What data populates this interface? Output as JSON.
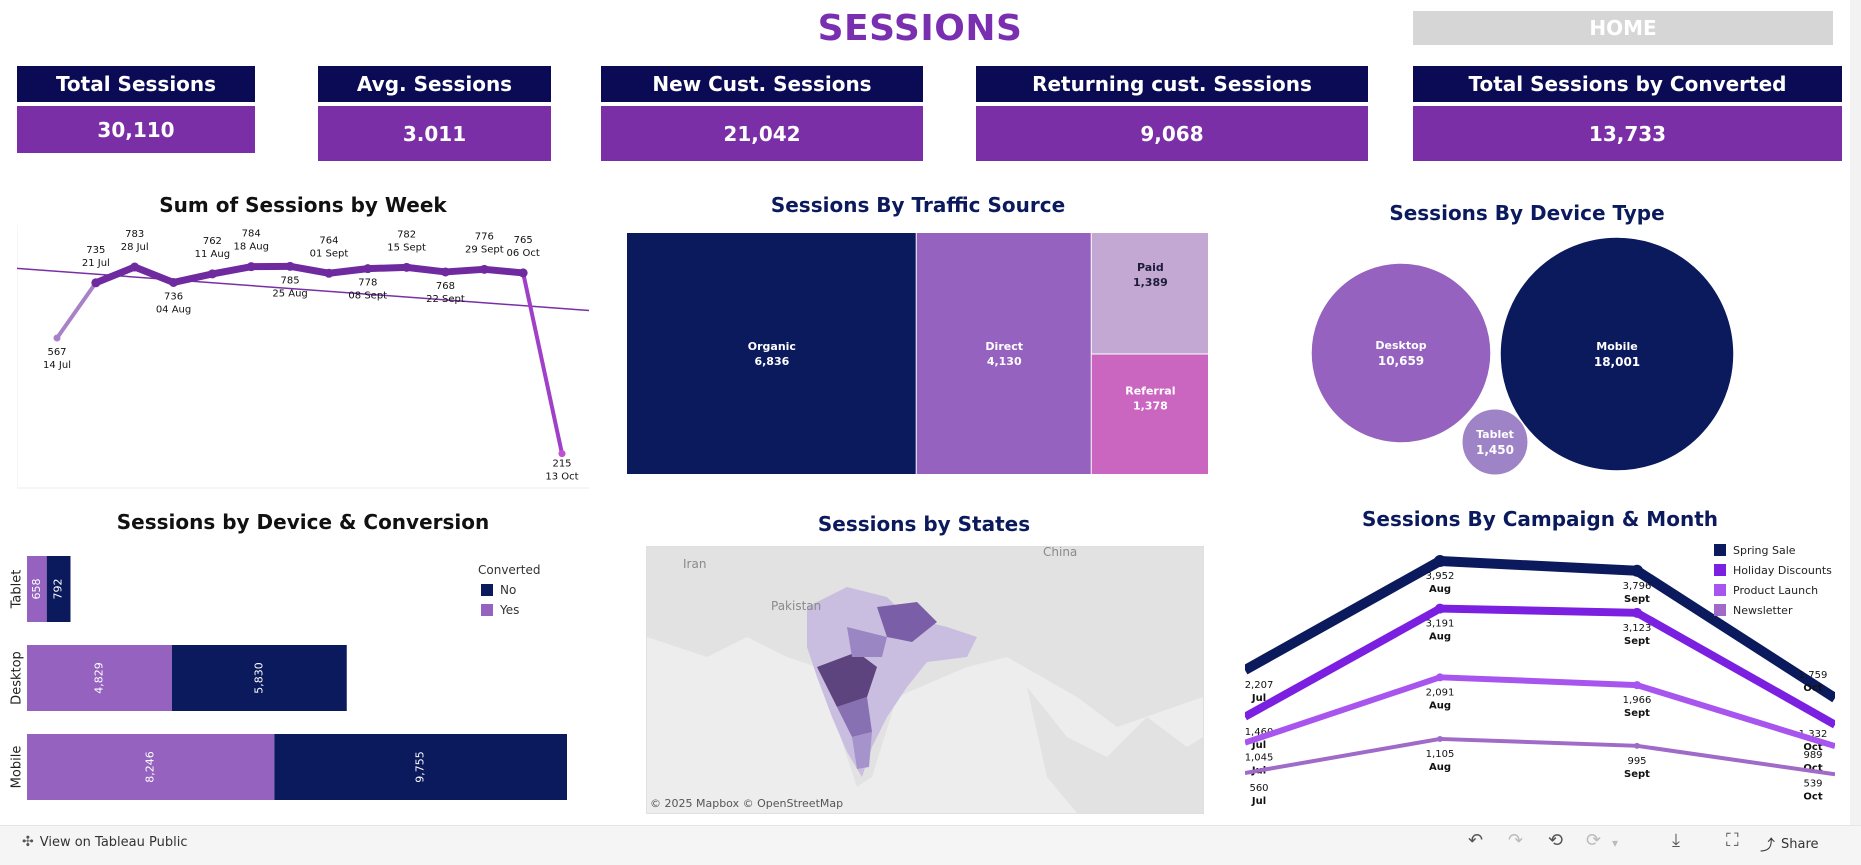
{
  "header": {
    "title": "SESSIONS",
    "home_label": "HOME"
  },
  "kpis": [
    {
      "label": "Total Sessions",
      "value": "30,110"
    },
    {
      "label": "Avg. Sessions",
      "value": "3.011"
    },
    {
      "label": "New Cust. Sessions",
      "value": "21,042"
    },
    {
      "label": "Returning cust. Sessions",
      "value": "9,068"
    },
    {
      "label": "Total Sessions by Converted",
      "value": "13,733"
    }
  ],
  "titles": {
    "week": "Sum of Sessions by Week",
    "traffic": "Sessions By Traffic Source",
    "device": "Sessions By Device Type",
    "devconv": "Sessions by Device & Conversion",
    "states": "Sessions by States",
    "campaign": "Sessions By Campaign & Month"
  },
  "colors": {
    "navy": "#0b1a5c",
    "purple": "#7a2fa6",
    "line": "#6e2a9e",
    "orchid": "#cb66c0",
    "lavender": "#c3a8d4",
    "mid_purple": "#9563bf"
  },
  "chart_data": [
    {
      "type": "line",
      "title": "Sum of Sessions by Week",
      "x": [
        "14 Jul",
        "21 Jul",
        "28 Jul",
        "04 Aug",
        "11 Aug",
        "18 Aug",
        "25 Aug",
        "01 Sept",
        "08 Sept",
        "15 Sept",
        "22 Sept",
        "29 Sept",
        "06 Oct",
        "13 Oct"
      ],
      "values": [
        567,
        735,
        783,
        736,
        762,
        784,
        785,
        764,
        778,
        782,
        768,
        776,
        765,
        215
      ],
      "labels": [
        "567",
        "735",
        "783",
        "736",
        "762",
        "784",
        "785",
        "764",
        "778",
        "782",
        "768",
        "776",
        "765",
        "215"
      ],
      "trend_line": true
    },
    {
      "type": "treemap",
      "title": "Sessions By Traffic Source",
      "items": [
        {
          "name": "Organic",
          "value": 6836,
          "label": "6,836",
          "color": "#0b1a5c"
        },
        {
          "name": "Direct",
          "value": 4130,
          "label": "4,130",
          "color": "#9563bf"
        },
        {
          "name": "Paid",
          "value": 1389,
          "label": "1,389",
          "color": "#c3a8d4"
        },
        {
          "name": "Referral",
          "value": 1378,
          "label": "1,378",
          "color": "#cb66c0"
        }
      ]
    },
    {
      "type": "bubble",
      "title": "Sessions By Device Type",
      "items": [
        {
          "name": "Desktop",
          "value": 10659,
          "label": "10,659",
          "color": "#9563bf"
        },
        {
          "name": "Mobile",
          "value": 18001,
          "label": "18,001",
          "color": "#0b1a5c"
        },
        {
          "name": "Tablet",
          "value": 1450,
          "label": "1,450",
          "color": "#9e84c6"
        }
      ]
    },
    {
      "type": "bar",
      "title": "Sessions by Device & Conversion",
      "orientation": "horizontal-stacked",
      "categories": [
        "Tablet",
        "Desktop",
        "Mobile"
      ],
      "legend_title": "Converted",
      "series": [
        {
          "name": "Yes",
          "values": [
            658,
            4829,
            8246
          ],
          "labels": [
            "658",
            "4,829",
            "8,246"
          ],
          "color": "#9563bf"
        },
        {
          "name": "No",
          "values": [
            792,
            5830,
            9755
          ],
          "labels": [
            "792",
            "5,830",
            "9,755"
          ],
          "color": "#0b1a5c"
        }
      ],
      "xlim": [
        0,
        18000
      ]
    },
    {
      "type": "map",
      "title": "Sessions by States",
      "map_labels": [
        "Iran",
        "Pakistan",
        "China"
      ],
      "attribution": "© 2025 Mapbox  © OpenStreetMap"
    },
    {
      "type": "line",
      "title": "Sessions By Campaign & Month",
      "categories": [
        "Jul",
        "Aug",
        "Sept",
        "Oct"
      ],
      "series": [
        {
          "name": "Spring Sale",
          "values": [
            2207,
            3952,
            3796,
            1759
          ],
          "labels": [
            "2,207",
            "3,952",
            "3,796",
            "1,759"
          ],
          "color": "#0b1a5c"
        },
        {
          "name": "Holiday Discounts",
          "values": [
            1460,
            3191,
            3123,
            1332
          ],
          "labels": [
            "1,460",
            "3,191",
            "3,123",
            "1,332"
          ],
          "color": "#7b1fe0"
        },
        {
          "name": "Product Launch",
          "values": [
            1045,
            2091,
            1966,
            989
          ],
          "labels": [
            "1,045",
            "2,091",
            "1,966",
            "989"
          ],
          "color": "#a855f0"
        },
        {
          "name": "Newsletter",
          "values": [
            560,
            1105,
            995,
            539
          ],
          "labels": [
            "560",
            "1,105",
            "995",
            "539"
          ],
          "color": "#a06ac8"
        }
      ]
    }
  ],
  "footer": {
    "link": "View on Tableau Public",
    "share": "Share"
  }
}
